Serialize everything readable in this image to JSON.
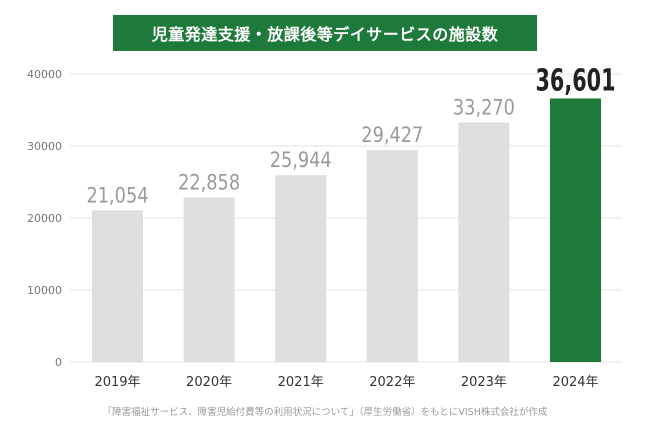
{
  "colors": {
    "title_bg": "#1d7a3a",
    "bar_default": "#dedede",
    "bar_highlight": "#1d7a3a",
    "grid": "#e3e3e3",
    "tick_text": "#777777",
    "value_text": "#9a9a9a",
    "value_highlight_text": "#222222"
  },
  "chart_data": {
    "type": "bar",
    "title": "児童発達支援・放課後等デイサービスの施設数",
    "categories": [
      "2019年",
      "2020年",
      "2021年",
      "2022年",
      "2023年",
      "2024年"
    ],
    "values": [
      21054,
      22858,
      25944,
      29427,
      33270,
      36601
    ],
    "value_labels": [
      "21,054",
      "22,858",
      "25,944",
      "29,427",
      "33,270",
      "36,601"
    ],
    "highlight_index": 5,
    "ylim": [
      0,
      40000
    ],
    "yticks": [
      0,
      10000,
      20000,
      30000,
      40000
    ],
    "ytick_labels": [
      "0",
      "10000",
      "20000",
      "30000",
      "40000"
    ],
    "grid": true,
    "xlabel": "",
    "ylabel": ""
  },
  "source": "「障害福祉サービス、障害児給付費等の利用状況について」（厚生労働省）をもとにVISH株式会社が作成"
}
